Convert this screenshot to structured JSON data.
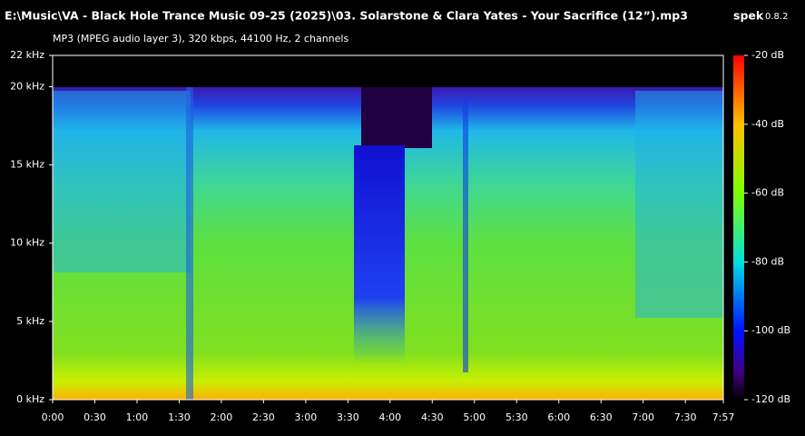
{
  "header": {
    "title": "E:\\Music\\VA - Black Hole Trance Music 09-25 (2025)\\03. Solarstone & Clara Yates - Your Sacrifice (12”).mp3",
    "app_name": "spek",
    "app_version": "0.8.2",
    "subtitle": "MP3 (MPEG audio layer 3), 320 kbps, 44100 Hz, 2 channels"
  },
  "frequency_axis": {
    "lim": [
      0,
      22
    ],
    "ticks": [
      {
        "value": 0,
        "label": "0 kHz"
      },
      {
        "value": 5,
        "label": "5 kHz"
      },
      {
        "value": 10,
        "label": "10 kHz"
      },
      {
        "value": 15,
        "label": "15 kHz"
      },
      {
        "value": 20,
        "label": "20 kHz"
      },
      {
        "value": 22,
        "label": "22 kHz"
      }
    ]
  },
  "time_axis": {
    "lim": [
      0,
      477
    ],
    "ticks": [
      {
        "value": 0,
        "label": "0:00"
      },
      {
        "value": 30,
        "label": "0:30"
      },
      {
        "value": 60,
        "label": "1:00"
      },
      {
        "value": 90,
        "label": "1:30"
      },
      {
        "value": 120,
        "label": "2:00"
      },
      {
        "value": 150,
        "label": "2:30"
      },
      {
        "value": 180,
        "label": "3:00"
      },
      {
        "value": 210,
        "label": "3:30"
      },
      {
        "value": 240,
        "label": "4:00"
      },
      {
        "value": 270,
        "label": "4:30"
      },
      {
        "value": 300,
        "label": "5:00"
      },
      {
        "value": 330,
        "label": "5:30"
      },
      {
        "value": 360,
        "label": "6:00"
      },
      {
        "value": 390,
        "label": "6:30"
      },
      {
        "value": 420,
        "label": "7:00"
      },
      {
        "value": 450,
        "label": "7:30"
      },
      {
        "value": 477,
        "label": "7:57"
      }
    ]
  },
  "level_axis": {
    "lim": [
      -120,
      -20
    ],
    "ticks": [
      {
        "value": -20,
        "label": "-20 dB"
      },
      {
        "value": -40,
        "label": "-40 dB"
      },
      {
        "value": -60,
        "label": "-60 dB"
      },
      {
        "value": -80,
        "label": "-80 dB"
      },
      {
        "value": -100,
        "label": "-100 dB"
      },
      {
        "value": -120,
        "label": "-120 dB"
      }
    ]
  }
}
